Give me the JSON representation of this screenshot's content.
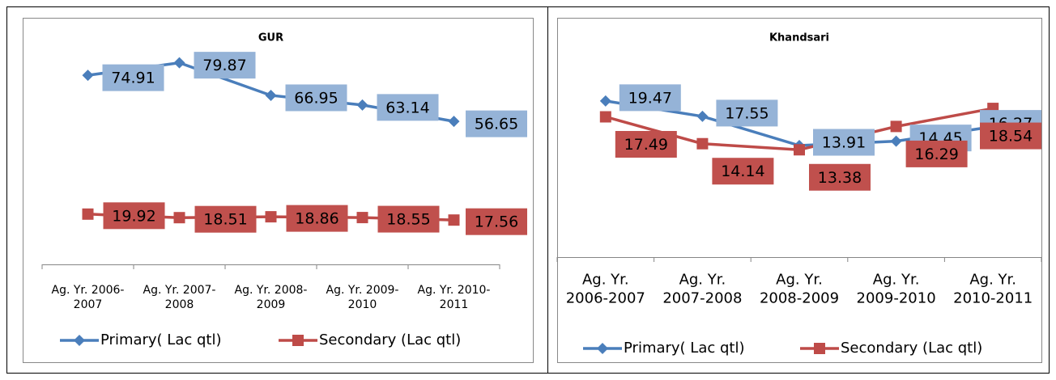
{
  "chart_data": [
    {
      "type": "line",
      "title": "GUR",
      "categories": [
        "Ag. Yr. 2006-2007",
        "Ag. Yr. 2007-2008",
        "Ag. Yr. 2008-2009",
        "Ag. Yr. 2009-2010",
        "Ag. Yr. 2010-2011"
      ],
      "series": [
        {
          "name": "Primary( Lac qtl)",
          "color": "#4a7ebb",
          "label_color": "#95b3d7",
          "marker": "diamond",
          "values": [
            74.91,
            79.87,
            66.95,
            63.14,
            56.65
          ]
        },
        {
          "name": "Secondary (Lac qtl)",
          "color": "#be4b48",
          "label_color": "#c0504d",
          "marker": "square",
          "values": [
            19.92,
            18.51,
            18.86,
            18.55,
            17.56
          ]
        }
      ],
      "ylim": [
        0,
        90
      ],
      "legend": "bottom"
    },
    {
      "type": "line",
      "title": "Khandsari",
      "categories": [
        "Ag. Yr. 2006-2007",
        "Ag. Yr. 2007-2008",
        "Ag. Yr. 2008-2009",
        "Ag. Yr. 2009-2010",
        "Ag. Yr. 2010-2011"
      ],
      "series": [
        {
          "name": "Primary( Lac qtl)",
          "color": "#4a7ebb",
          "label_color": "#95b3d7",
          "marker": "diamond",
          "values": [
            19.47,
            17.55,
            13.91,
            14.45,
            16.27
          ]
        },
        {
          "name": "Secondary (Lac qtl)",
          "color": "#be4b48",
          "label_color": "#c0504d",
          "marker": "square",
          "values": [
            17.49,
            14.14,
            13.38,
            16.29,
            18.54
          ]
        }
      ],
      "ylim": [
        0,
        25
      ],
      "legend": "bottom"
    }
  ]
}
